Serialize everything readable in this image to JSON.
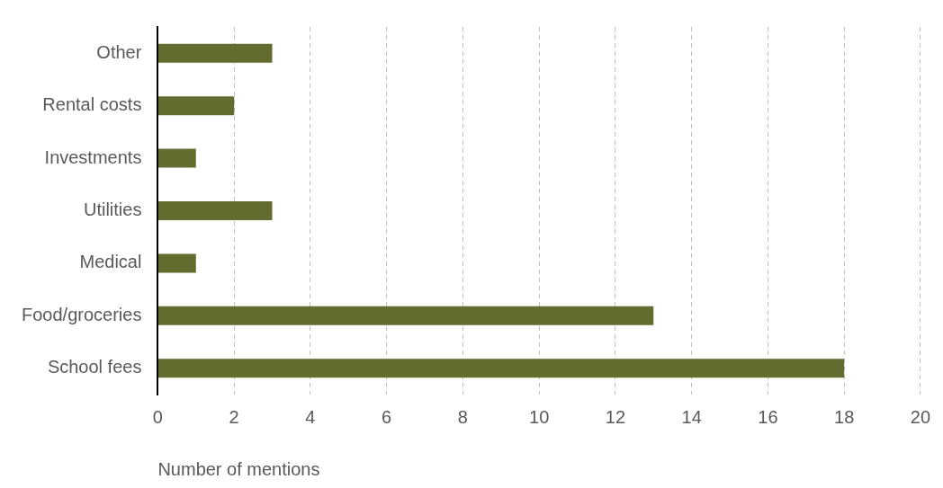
{
  "chart_data": {
    "type": "bar",
    "orientation": "horizontal",
    "categories": [
      "Other",
      "Rental costs",
      "Investments",
      "Utilities",
      "Medical",
      "Food/groceries",
      "School fees"
    ],
    "values": [
      3,
      2,
      1,
      3,
      1,
      13,
      18
    ],
    "color": "#636b2f",
    "xlabel": "Number of mentions",
    "xlim": [
      0,
      20
    ],
    "xticks": [
      0,
      2,
      4,
      6,
      8,
      10,
      12,
      14,
      16,
      18,
      20
    ],
    "grid": "x",
    "legend": false
  }
}
